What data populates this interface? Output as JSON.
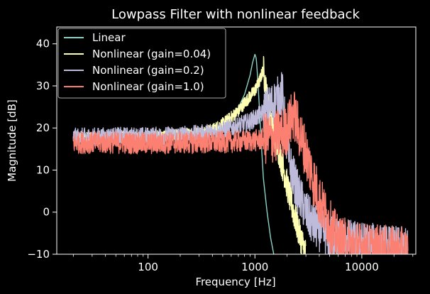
{
  "chart_data": {
    "type": "line",
    "title": "Lowpass Filter with nonlinear feedback",
    "xlabel": "Frequency [Hz]",
    "ylabel": "Magnitude [dB]",
    "xscale": "log",
    "xlim": [
      14,
      32000
    ],
    "ylim": [
      -10,
      44
    ],
    "xticks": [
      100,
      1000,
      10000
    ],
    "xtick_labels": [
      "100",
      "1000",
      "10000"
    ],
    "yticks": [
      -10,
      0,
      10,
      20,
      30,
      40
    ],
    "ytick_labels": [
      "−10",
      "0",
      "10",
      "20",
      "30",
      "40"
    ],
    "grid": false,
    "legend_position": "top-left",
    "series": [
      {
        "name": "Linear",
        "color": "#8dd3c7",
        "points": [
          [
            20,
            17.2
          ],
          [
            50,
            17.3
          ],
          [
            100,
            17.5
          ],
          [
            200,
            18.0
          ],
          [
            300,
            18.6
          ],
          [
            400,
            19.5
          ],
          [
            500,
            20.8
          ],
          [
            600,
            22.5
          ],
          [
            700,
            24.8
          ],
          [
            800,
            28.0
          ],
          [
            900,
            32.5
          ],
          [
            950,
            35.5
          ],
          [
            1000,
            37.5
          ],
          [
            1030,
            36.5
          ],
          [
            1060,
            32.0
          ],
          [
            1100,
            25.0
          ],
          [
            1150,
            16.0
          ],
          [
            1200,
            8.0
          ],
          [
            1300,
            0.0
          ],
          [
            1400,
            -6.0
          ],
          [
            1500,
            -10.0
          ]
        ]
      },
      {
        "name": "Nonlinear (gain=0.04)",
        "color": "#ffffb3",
        "points": [
          [
            20,
            17.5
          ],
          [
            50,
            17.8
          ],
          [
            100,
            17.8
          ],
          [
            200,
            18.3
          ],
          [
            300,
            18.8
          ],
          [
            400,
            19.5
          ],
          [
            500,
            21.0
          ],
          [
            600,
            22.5
          ],
          [
            700,
            24.0
          ],
          [
            800,
            26.0
          ],
          [
            900,
            27.5
          ],
          [
            1000,
            29.0
          ],
          [
            1100,
            31.0
          ],
          [
            1200,
            34.0
          ],
          [
            1300,
            27.0
          ],
          [
            1400,
            22.0
          ],
          [
            1500,
            18.5
          ],
          [
            1700,
            14.0
          ],
          [
            1900,
            9.0
          ],
          [
            2100,
            4.0
          ],
          [
            2300,
            0.0
          ],
          [
            2600,
            -5.0
          ],
          [
            3000,
            -10.0
          ]
        ],
        "noise": 1.5
      },
      {
        "name": "Nonlinear (gain=0.2)",
        "color": "#bebada",
        "points": [
          [
            20,
            17.8
          ],
          [
            50,
            18.0
          ],
          [
            100,
            18.0
          ],
          [
            200,
            18.3
          ],
          [
            300,
            18.5
          ],
          [
            400,
            19.0
          ],
          [
            500,
            19.5
          ],
          [
            700,
            20.5
          ],
          [
            900,
            21.5
          ],
          [
            1100,
            23.0
          ],
          [
            1300,
            24.5
          ],
          [
            1500,
            26.0
          ],
          [
            1700,
            27.5
          ],
          [
            1800,
            28.5
          ],
          [
            1900,
            22.0
          ],
          [
            2000,
            15.0
          ],
          [
            2200,
            10.0
          ],
          [
            2500,
            5.0
          ],
          [
            3000,
            0.0
          ],
          [
            3500,
            -3.0
          ],
          [
            5000,
            -6.0
          ],
          [
            10000,
            -7.5
          ],
          [
            20000,
            -8.5
          ],
          [
            27000,
            -9.0
          ]
        ],
        "noise": 2.2
      },
      {
        "name": "Nonlinear (gain=1.0)",
        "color": "#fb8072",
        "points": [
          [
            20,
            16.5
          ],
          [
            50,
            16.5
          ],
          [
            100,
            16.3
          ],
          [
            200,
            16.5
          ],
          [
            400,
            16.5
          ],
          [
            700,
            16.8
          ],
          [
            1000,
            17.0
          ],
          [
            1300,
            17.5
          ],
          [
            1600,
            18.0
          ],
          [
            1900,
            19.0
          ],
          [
            2100,
            21.0
          ],
          [
            2300,
            23.5
          ],
          [
            2600,
            19.0
          ],
          [
            3000,
            14.0
          ],
          [
            3500,
            8.0
          ],
          [
            4000,
            3.0
          ],
          [
            5000,
            -3.0
          ],
          [
            6000,
            -7.0
          ],
          [
            8000,
            -8.0
          ],
          [
            12000,
            -9.0
          ],
          [
            20000,
            -9.5
          ],
          [
            27000,
            -9.8
          ]
        ],
        "noise": 2.6
      }
    ]
  }
}
